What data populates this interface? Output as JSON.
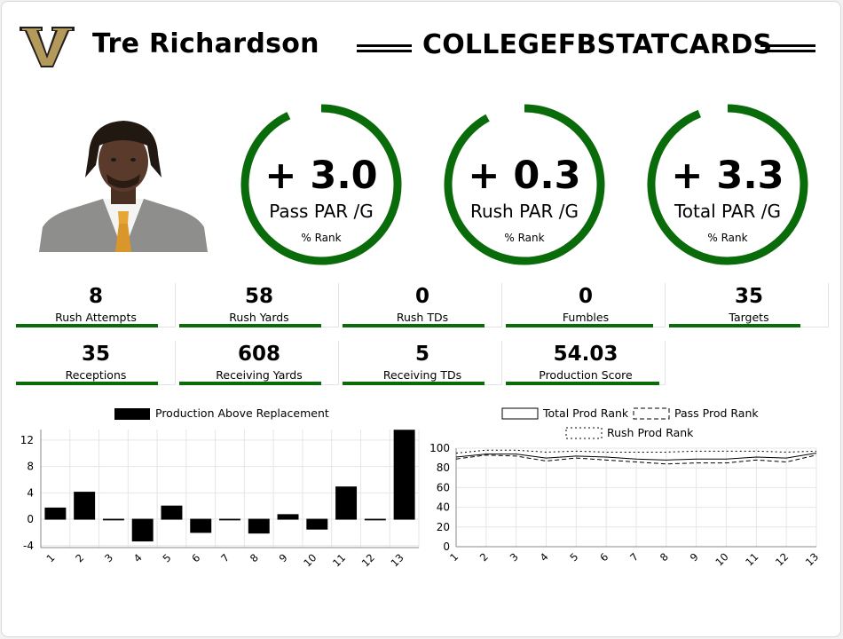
{
  "header": {
    "player_name": "Tre Richardson",
    "brand": "COLLEGEFBSTATCARDS",
    "logo_icon": "vanderbilt-v-logo",
    "logo_colors": {
      "gold": "#b49a5a",
      "dark": "#231f20"
    }
  },
  "photo": {
    "icon": "player-headshot"
  },
  "gauges": [
    {
      "value": "+ 3.0",
      "label": "Pass PAR /G",
      "rank_label": "% Rank",
      "fill": 0.93
    },
    {
      "value": "+ 0.3",
      "label": "Rush PAR /G",
      "rank_label": "% Rank",
      "fill": 0.92
    },
    {
      "value": "+ 3.3",
      "label": "Total PAR /G",
      "rank_label": "% Rank",
      "fill": 0.94
    }
  ],
  "stats": [
    {
      "value": "8",
      "label": "Rush Attempts",
      "fill": 0.89
    },
    {
      "value": "58",
      "label": "Rush Yards",
      "fill": 0.89
    },
    {
      "value": "0",
      "label": "Rush TDs",
      "fill": 0.89
    },
    {
      "value": "0",
      "label": "Fumbles",
      "fill": 0.92
    },
    {
      "value": "35",
      "label": "Targets",
      "fill": 0.82
    },
    {
      "value": "35",
      "label": "Receptions",
      "fill": 0.89
    },
    {
      "value": "608",
      "label": "Receiving Yards",
      "fill": 0.89
    },
    {
      "value": "5",
      "label": "Receiving TDs",
      "fill": 0.89
    },
    {
      "value": "54.03",
      "label": "Production Score",
      "fill": 0.96
    }
  ],
  "colors": {
    "accent_green": "#0a6b0a"
  },
  "chart_data": [
    {
      "type": "bar",
      "categories": [
        "1",
        "2",
        "3",
        "4",
        "5",
        "6",
        "7",
        "8",
        "9",
        "10",
        "11",
        "12",
        "13"
      ],
      "series": [
        {
          "name": "Production Above Replacement",
          "values": [
            1.7,
            4.1,
            0.0,
            -3.3,
            2.0,
            -2.0,
            0,
            -2.1,
            0.7,
            -1.5,
            4.9,
            0,
            13.5
          ]
        }
      ],
      "yticks": [
        12,
        8,
        4,
        0,
        -4
      ],
      "ylim": [
        -4.3,
        13.6
      ],
      "grid": true,
      "legend": "top-center"
    },
    {
      "type": "line",
      "x": [
        "1",
        "2",
        "3",
        "4",
        "5",
        "6",
        "7",
        "8",
        "9",
        "10",
        "11",
        "12",
        "13"
      ],
      "series": [
        {
          "name": "Total Prod Rank",
          "style": "solid",
          "values": [
            91,
            94,
            94,
            90,
            92,
            91,
            89,
            88,
            89,
            89,
            91,
            90,
            95
          ]
        },
        {
          "name": "Pass Prod Rank",
          "style": "dashed",
          "values": [
            89,
            93,
            92,
            87,
            90,
            88,
            86,
            84,
            85,
            85,
            88,
            86,
            93
          ]
        },
        {
          "name": "Rush Prod Rank",
          "style": "dotted",
          "values": [
            95,
            98,
            98,
            96,
            97,
            96,
            96,
            96,
            97,
            97,
            97,
            96,
            97
          ]
        }
      ],
      "yticks": [
        0,
        20,
        40,
        60,
        80,
        100
      ],
      "ylim": [
        0,
        100
      ],
      "grid": true,
      "legend": "top-center"
    }
  ]
}
